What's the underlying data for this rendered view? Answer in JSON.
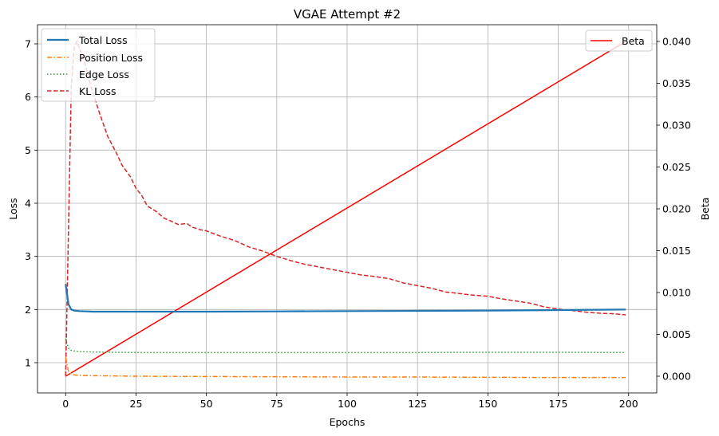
{
  "chart_data": {
    "type": "line",
    "title": "VGAE Attempt #2",
    "xlabel": "Epochs",
    "ylabel": "Loss",
    "y2label": "Beta",
    "xlim": [
      -10,
      210
    ],
    "ylim": [
      0.43,
      7.36
    ],
    "y2lim": [
      -0.002,
      0.042
    ],
    "xticks": [
      0,
      25,
      50,
      75,
      100,
      125,
      150,
      175,
      200
    ],
    "yticks": [
      1,
      2,
      3,
      4,
      5,
      6,
      7
    ],
    "y2ticks": [
      0.0,
      0.005,
      0.01,
      0.015,
      0.02,
      0.025,
      0.03,
      0.035,
      0.04
    ],
    "y2tick_labels": [
      "0.000",
      "0.005",
      "0.010",
      "0.015",
      "0.020",
      "0.025",
      "0.030",
      "0.035",
      "0.040"
    ],
    "grid": true,
    "legend_left": [
      "Total Loss",
      "Position Loss",
      "Edge Loss",
      "KL Loss"
    ],
    "legend_right": [
      "Beta"
    ],
    "series": [
      {
        "name": "Total Loss",
        "axis": "left",
        "color": "#1f77b4",
        "style": "solid",
        "x": [
          0,
          1,
          2,
          3,
          5,
          10,
          20,
          30,
          50,
          75,
          100,
          125,
          150,
          175,
          199
        ],
        "values": [
          2.48,
          2.1,
          2.0,
          1.98,
          1.97,
          1.96,
          1.96,
          1.96,
          1.96,
          1.965,
          1.97,
          1.975,
          1.98,
          1.99,
          2.0
        ]
      },
      {
        "name": "Position Loss",
        "axis": "left",
        "color": "#ff7f0e",
        "style": "dashdot",
        "x": [
          0,
          1,
          2,
          3,
          5,
          10,
          25,
          50,
          75,
          100,
          125,
          150,
          175,
          199
        ],
        "values": [
          1.1,
          0.84,
          0.79,
          0.77,
          0.76,
          0.755,
          0.745,
          0.74,
          0.735,
          0.73,
          0.73,
          0.725,
          0.72,
          0.72
        ]
      },
      {
        "name": "Edge Loss",
        "axis": "left",
        "color": "#2ca02c",
        "style": "dotted",
        "x": [
          0,
          1,
          2,
          3,
          5,
          10,
          25,
          50,
          75,
          100,
          125,
          150,
          175,
          199
        ],
        "values": [
          1.45,
          1.27,
          1.23,
          1.22,
          1.21,
          1.2,
          1.19,
          1.19,
          1.19,
          1.19,
          1.19,
          1.195,
          1.195,
          1.19
        ]
      },
      {
        "name": "KL Loss",
        "axis": "left",
        "color": "#d62728",
        "style": "dashed",
        "x": [
          0,
          1,
          2,
          3,
          4,
          5,
          7,
          9,
          12,
          15,
          18,
          20,
          23,
          25,
          27,
          29,
          32,
          35,
          38,
          40,
          43,
          45,
          48,
          50,
          55,
          60,
          65,
          70,
          75,
          80,
          85,
          90,
          95,
          100,
          105,
          110,
          115,
          120,
          125,
          130,
          135,
          140,
          145,
          150,
          155,
          160,
          165,
          170,
          175,
          180,
          185,
          190,
          195,
          199
        ],
        "values": [
          0.75,
          3.5,
          6.2,
          6.92,
          7.05,
          6.9,
          6.6,
          6.2,
          5.7,
          5.25,
          4.95,
          4.72,
          4.5,
          4.28,
          4.15,
          3.95,
          3.85,
          3.72,
          3.65,
          3.6,
          3.62,
          3.55,
          3.5,
          3.48,
          3.38,
          3.3,
          3.18,
          3.1,
          3.0,
          2.92,
          2.85,
          2.8,
          2.75,
          2.7,
          2.65,
          2.62,
          2.58,
          2.5,
          2.45,
          2.4,
          2.33,
          2.3,
          2.27,
          2.25,
          2.2,
          2.16,
          2.12,
          2.05,
          2.01,
          1.98,
          1.95,
          1.93,
          1.92,
          1.9
        ]
      },
      {
        "name": "Beta",
        "axis": "right",
        "color": "#ff0000",
        "style": "solid",
        "x": [
          0,
          199
        ],
        "values": [
          0.0,
          0.04
        ]
      }
    ]
  }
}
